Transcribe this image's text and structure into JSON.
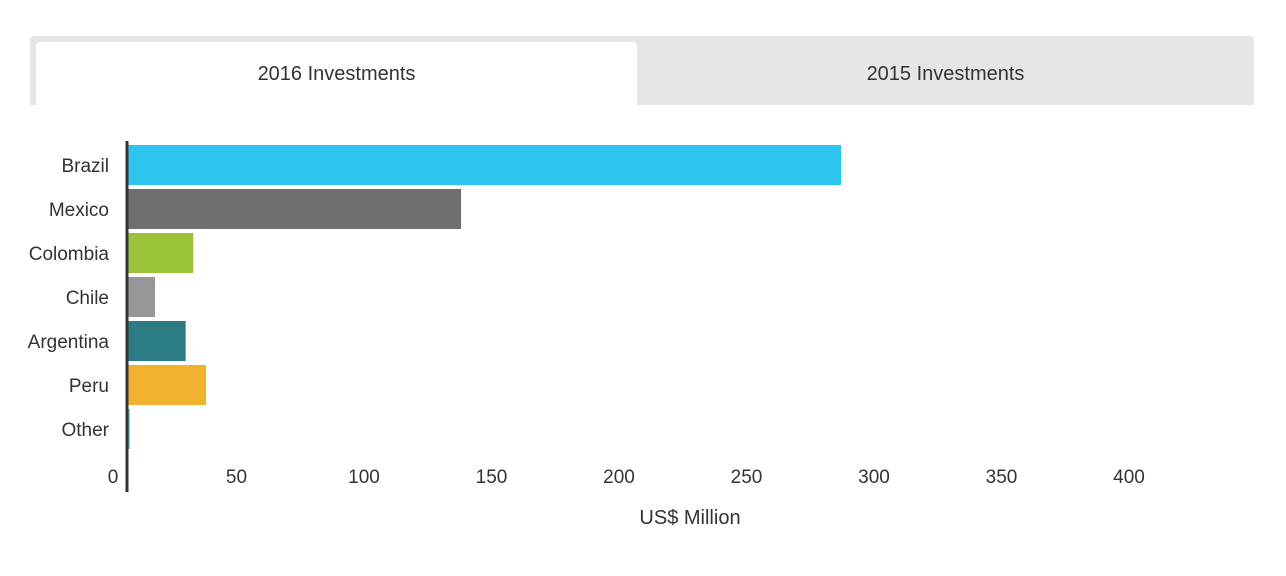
{
  "tabs": [
    {
      "label": "2016 Investments",
      "active": true
    },
    {
      "label": "2015 Investments",
      "active": false
    }
  ],
  "chart_data": {
    "type": "bar",
    "orientation": "horizontal",
    "categories": [
      "Brazil",
      "Mexico",
      "Colombia",
      "Chile",
      "Argentina",
      "Peru",
      "Other"
    ],
    "values": [
      280,
      131,
      26,
      11,
      23,
      31,
      1
    ],
    "colors": [
      "#2ec4f0",
      "#6f6f71",
      "#9bc43a",
      "#979797",
      "#2b7b84",
      "#f0b12d",
      "#3cb8b0"
    ],
    "xlabel": "US$ Million",
    "ylabel": "",
    "xlim": [
      0,
      440
    ],
    "xticks": [
      0,
      50,
      100,
      150,
      200,
      250,
      300,
      350,
      400
    ],
    "grid": false,
    "legend": "none"
  }
}
